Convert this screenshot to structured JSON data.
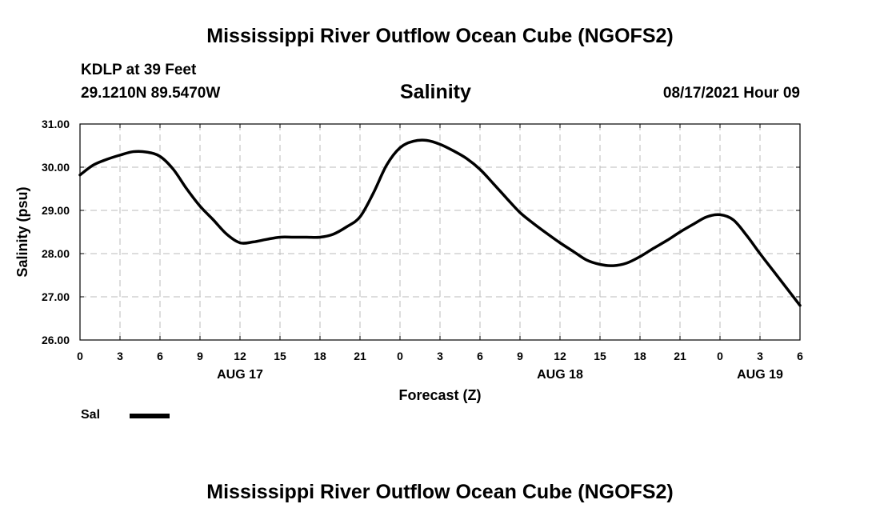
{
  "header": {
    "title": "Mississippi River Outflow Ocean Cube (NGOFS2)",
    "station": "KDLP at 39 Feet",
    "coords": "29.1210N  89.5470W",
    "subtitle": "Salinity",
    "timestamp": "08/17/2021 Hour 09"
  },
  "footer": {
    "title": "Mississippi River Outflow Ocean Cube (NGOFS2)"
  },
  "legend": {
    "label": "Sal"
  },
  "colors": {
    "line": "#000000",
    "grid": "#bbbbbb"
  },
  "chart_data": {
    "type": "line",
    "title": "Salinity",
    "xlabel": "Forecast (Z)",
    "ylabel": "Salinity (psu)",
    "xlim": [
      0,
      54
    ],
    "ylim": [
      26,
      31
    ],
    "grid": true,
    "x_ticks": [
      {
        "x": 0,
        "label": "0"
      },
      {
        "x": 3,
        "label": "3"
      },
      {
        "x": 6,
        "label": "6"
      },
      {
        "x": 9,
        "label": "9"
      },
      {
        "x": 12,
        "label": "12"
      },
      {
        "x": 15,
        "label": "15"
      },
      {
        "x": 18,
        "label": "18"
      },
      {
        "x": 21,
        "label": "21"
      },
      {
        "x": 24,
        "label": "0"
      },
      {
        "x": 27,
        "label": "3"
      },
      {
        "x": 30,
        "label": "6"
      },
      {
        "x": 33,
        "label": "9"
      },
      {
        "x": 36,
        "label": "12"
      },
      {
        "x": 39,
        "label": "15"
      },
      {
        "x": 42,
        "label": "18"
      },
      {
        "x": 45,
        "label": "21"
      },
      {
        "x": 48,
        "label": "0"
      },
      {
        "x": 51,
        "label": "3"
      },
      {
        "x": 54,
        "label": "6"
      }
    ],
    "y_ticks": [
      {
        "y": 26,
        "label": "26.00"
      },
      {
        "y": 27,
        "label": "27.00"
      },
      {
        "y": 28,
        "label": "28.00"
      },
      {
        "y": 29,
        "label": "29.00"
      },
      {
        "y": 30,
        "label": "30.00"
      },
      {
        "y": 31,
        "label": "31.00"
      }
    ],
    "date_labels": [
      {
        "x": 12,
        "label": "AUG 17"
      },
      {
        "x": 36,
        "label": "AUG 18"
      },
      {
        "x": 51,
        "label": "AUG 19"
      }
    ],
    "series": [
      {
        "name": "Sal",
        "x": [
          0,
          1,
          2,
          3,
          4,
          5,
          6,
          7,
          8,
          9,
          10,
          11,
          12,
          13,
          14,
          15,
          16,
          17,
          18,
          19,
          20,
          21,
          22,
          23,
          24,
          25,
          26,
          27,
          28,
          29,
          30,
          31,
          32,
          33,
          34,
          35,
          36,
          37,
          38,
          39,
          40,
          41,
          42,
          43,
          44,
          45,
          46,
          47,
          48,
          49,
          50,
          51,
          52,
          53,
          54
        ],
        "y": [
          29.82,
          30.05,
          30.18,
          30.28,
          30.36,
          30.35,
          30.25,
          29.95,
          29.5,
          29.1,
          28.78,
          28.45,
          28.25,
          28.27,
          28.33,
          28.38,
          28.38,
          28.38,
          28.38,
          28.45,
          28.62,
          28.85,
          29.4,
          30.05,
          30.45,
          30.6,
          30.62,
          30.53,
          30.38,
          30.2,
          29.95,
          29.62,
          29.28,
          28.95,
          28.7,
          28.47,
          28.25,
          28.05,
          27.85,
          27.75,
          27.72,
          27.78,
          27.93,
          28.12,
          28.3,
          28.5,
          28.68,
          28.85,
          28.9,
          28.78,
          28.42,
          28.0,
          27.6,
          27.2,
          26.8
        ]
      }
    ]
  }
}
